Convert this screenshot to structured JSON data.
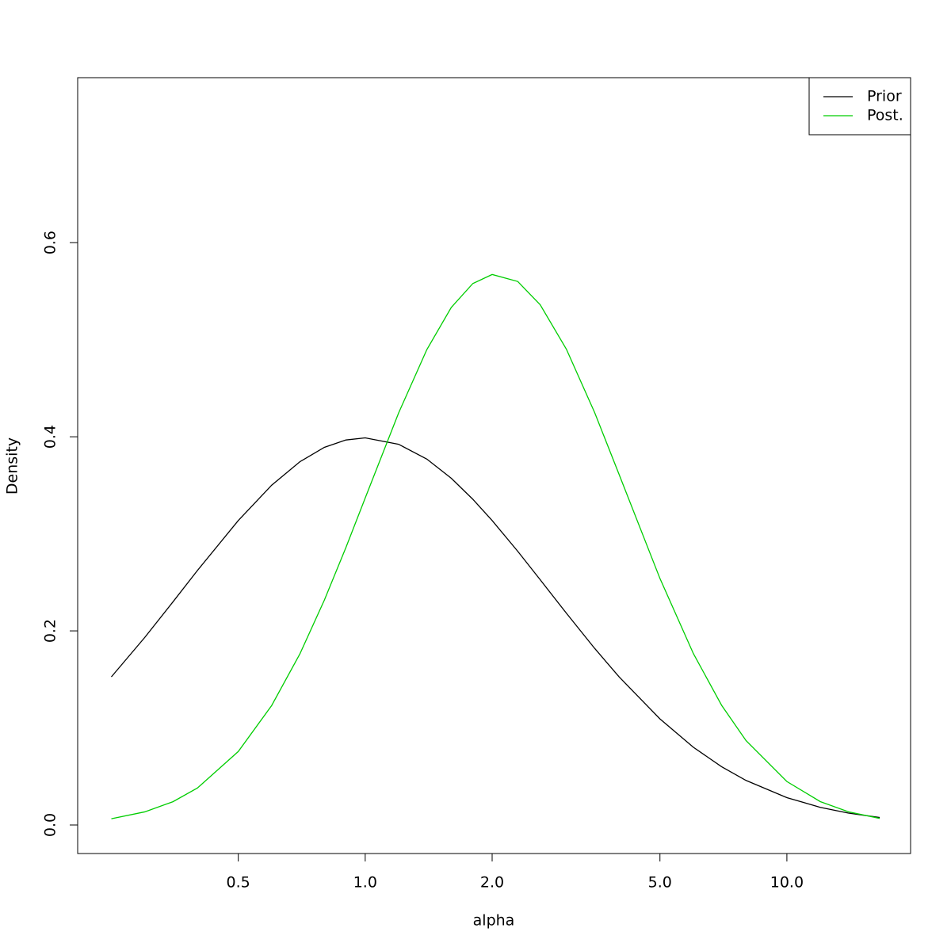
{
  "chart_data": {
    "type": "line",
    "xlabel": "alpha",
    "ylabel": "Density",
    "log_x": true,
    "x": [
      0.25,
      0.3,
      0.35,
      0.4,
      0.5,
      0.6,
      0.7,
      0.8,
      0.9,
      1.0,
      1.2,
      1.4,
      1.6,
      1.8,
      2.0,
      2.3,
      2.6,
      3.0,
      3.5,
      4,
      5,
      6,
      7,
      8,
      10,
      12,
      14,
      16.6
    ],
    "series": [
      {
        "name": "Prior",
        "color": "#000000",
        "values": [
          0.1526,
          0.1932,
          0.2299,
          0.2622,
          0.3137,
          0.3501,
          0.3743,
          0.3891,
          0.3967,
          0.3989,
          0.3923,
          0.377,
          0.3572,
          0.3356,
          0.3137,
          0.282,
          0.2527,
          0.2182,
          0.182,
          0.1526,
          0.1093,
          0.0801,
          0.0601,
          0.0459,
          0.0282,
          0.0182,
          0.01226,
          0.00771
        ]
      },
      {
        "name": "Post.",
        "color": "#00cd00",
        "values": [
          0.00644,
          0.01352,
          0.024,
          0.0381,
          0.0757,
          0.1231,
          0.1763,
          0.2317,
          0.2859,
          0.3369,
          0.4245,
          0.4898,
          0.5333,
          0.5579,
          0.5672,
          0.56,
          0.536,
          0.4902,
          0.425,
          0.3612,
          0.254,
          0.1767,
          0.1234,
          0.087,
          0.0448,
          0.0241,
          0.01356,
          0.00679
        ]
      }
    ],
    "xlim": [
      0.208,
      19.65
    ],
    "ylim": [
      -0.0294,
      0.77
    ],
    "xticks": [
      0.5,
      {
        "value": 1,
        "label": "1.0"
      },
      {
        "value": 2,
        "label": "2.0"
      },
      {
        "value": 5,
        "label": "5.0"
      },
      {
        "value": 10,
        "label": "10.0"
      }
    ],
    "yticks": [
      {
        "value": 0,
        "label": "0.0"
      },
      0.2,
      0.4,
      0.6
    ],
    "legend": "top-right"
  }
}
